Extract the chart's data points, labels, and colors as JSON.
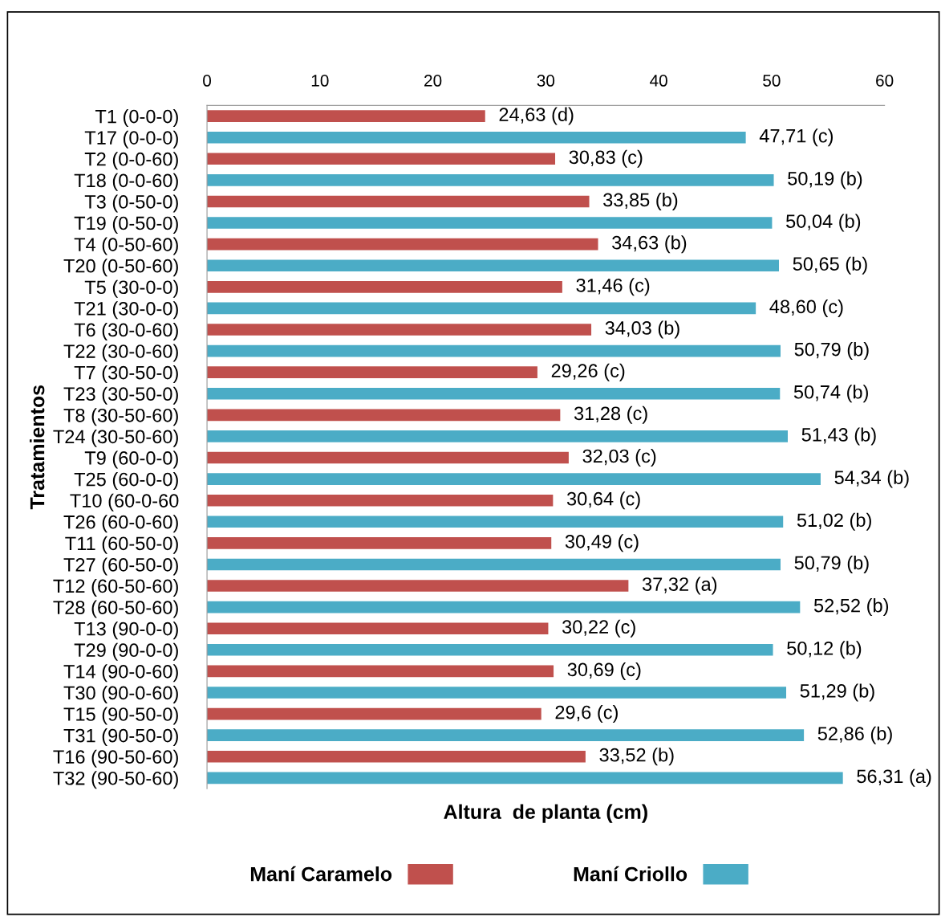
{
  "chart_data": {
    "type": "bar",
    "orientation": "horizontal",
    "stacked": true,
    "xlabel": "Altura  de planta (cm)",
    "ylabel": "Tratamientos",
    "categories": [
      "T1 (0-0-0)",
      "T17 (0-0-0)",
      "T2 (0-0-60)",
      "T18 (0-0-60)",
      "T3 (0-50-0)",
      "T19 (0-50-0)",
      "T4 (0-50-60)",
      "T20 (0-50-60)",
      "T5 (30-0-0)",
      "T21 (30-0-0)",
      "T6 (30-0-60)",
      "T22 (30-0-60)",
      "T7 (30-50-0)",
      "T23 (30-50-0)",
      "T8 (30-50-60)",
      "T24 (30-50-60)",
      "T9 (60-0-0)",
      "T25 (60-0-0)",
      "T10 (60-0-60",
      "T26 (60-0-60)",
      "T11 (60-50-0)",
      "T27 (60-50-0)",
      "T12 (60-50-60)",
      "T28 (60-50-60)",
      "T13 (90-0-0)",
      "T29 (90-0-0)",
      "T14 (90-0-60)",
      "T30 (90-0-60)",
      "T15 (90-50-0)",
      "T31 (90-50-0)",
      "T16 (90-50-60)",
      "T32 (90-50-60)"
    ],
    "series": [
      {
        "name": "Maní Caramelo",
        "color": "#c0504d",
        "values": [
          24.63,
          null,
          30.83,
          null,
          33.85,
          null,
          34.63,
          null,
          31.46,
          null,
          34.03,
          null,
          29.26,
          null,
          31.28,
          null,
          32.03,
          null,
          30.64,
          null,
          30.49,
          null,
          37.32,
          null,
          30.22,
          null,
          30.69,
          null,
          29.6,
          null,
          33.52,
          null
        ],
        "value_labels": [
          "24,63 (d)",
          null,
          "30,83 (c)",
          null,
          "33,85 (b)",
          null,
          "34,63 (b)",
          null,
          "31,46 (c)",
          null,
          "34,03 (b)",
          null,
          "29,26 (c)",
          null,
          "31,28 (c)",
          null,
          "32,03 (c)",
          null,
          "30,64 (c)",
          null,
          "30,49 (c)",
          null,
          "37,32 (a)",
          null,
          "30,22 (c)",
          null,
          "30,69 (c)",
          null,
          "29,6 (c)",
          null,
          "33,52 (b)",
          null
        ]
      },
      {
        "name": "Maní Criollo",
        "color": "#4bacc6",
        "values": [
          null,
          47.71,
          null,
          50.19,
          null,
          50.04,
          null,
          50.65,
          null,
          48.6,
          null,
          50.79,
          null,
          50.74,
          null,
          51.43,
          null,
          54.34,
          null,
          51.02,
          null,
          50.79,
          null,
          52.52,
          null,
          50.12,
          null,
          51.29,
          null,
          52.86,
          null,
          56.31
        ],
        "value_labels": [
          null,
          "47,71 (c)",
          null,
          "50,19 (b)",
          null,
          "50,04 (b)",
          null,
          "50,65 (b)",
          null,
          "48,60 (c)",
          null,
          "50,79 (b)",
          null,
          "50,74 (b)",
          null,
          "51,43 (b)",
          null,
          "54,34 (b)",
          null,
          "51,02 (b)",
          null,
          "50,79 (b)",
          null,
          "52,52 (b)",
          null,
          "50,12 (b)",
          null,
          "51,29 (b)",
          null,
          "52,86 (b)",
          null,
          "56,31 (a)"
        ]
      }
    ],
    "xlim": [
      0,
      60
    ],
    "xticks": [
      0,
      10,
      20,
      30,
      40,
      50,
      60
    ],
    "grid": false,
    "legend": "bottom"
  }
}
